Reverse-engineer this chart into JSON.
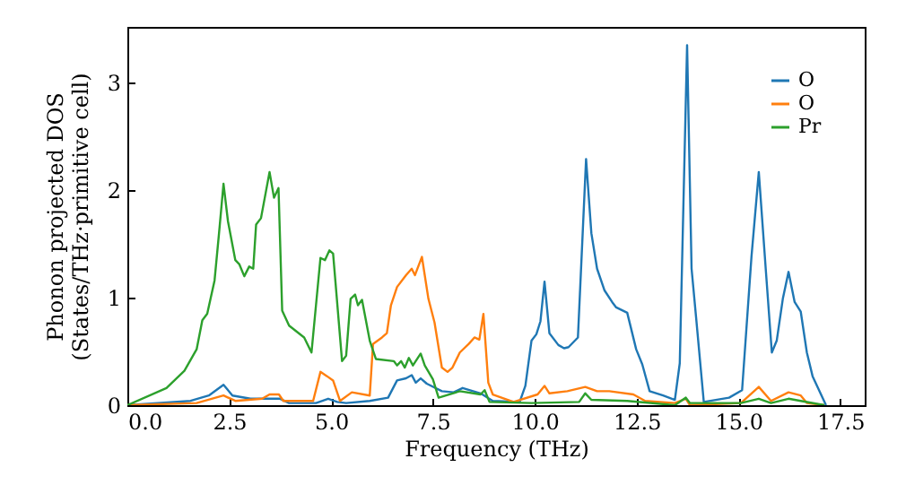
{
  "chart_data": {
    "type": "line",
    "xlabel": "Frequency (THz)",
    "ylabel": "Phonon projected DOS\n(States/THz·primitive cell)",
    "xlim": [
      0,
      18.1
    ],
    "ylim": [
      0,
      3.52
    ],
    "xticks": [
      {
        "value": 0,
        "label": "0.0"
      },
      {
        "value": 2.5,
        "label": "2.5"
      },
      {
        "value": 5,
        "label": "5.0"
      },
      {
        "value": 7.5,
        "label": "7.5"
      },
      {
        "value": 10,
        "label": "10.0"
      },
      {
        "value": 12.5,
        "label": "12.5"
      },
      {
        "value": 15,
        "label": "15.0"
      },
      {
        "value": 17.5,
        "label": "17.5"
      }
    ],
    "yticks": [
      0,
      1,
      2,
      3
    ],
    "grid": false,
    "legend": "top right",
    "marker": "none",
    "line_style": "solid",
    "series": [
      {
        "name": "O",
        "color": "#1f77b4",
        "x": [
          0,
          1.55,
          2.0,
          2.36,
          2.58,
          3.02,
          3.75,
          3.97,
          4.63,
          4.93,
          5.15,
          5.37,
          5.95,
          6.4,
          6.62,
          6.84,
          6.98,
          7.08,
          7.2,
          7.35,
          7.72,
          8.01,
          8.23,
          8.67,
          8.97,
          9.63,
          9.77,
          9.92,
          10.04,
          10.14,
          10.24,
          10.36,
          10.58,
          10.72,
          10.83,
          11.06,
          11.26,
          11.39,
          11.53,
          11.71,
          11.9,
          12.0,
          12.27,
          12.49,
          12.64,
          12.82,
          13.15,
          13.44,
          13.56,
          13.74,
          13.85,
          13.96,
          14.15,
          14.77,
          15.09,
          15.32,
          15.5,
          15.67,
          15.82,
          15.94,
          16.09,
          16.23,
          16.38,
          16.53,
          16.68,
          16.82,
          17.15
        ],
        "values": [
          0,
          0.04,
          0.09,
          0.19,
          0.09,
          0.06,
          0.06,
          0.02,
          0.02,
          0.06,
          0.03,
          0.02,
          0.04,
          0.07,
          0.23,
          0.25,
          0.28,
          0.21,
          0.25,
          0.2,
          0.13,
          0.12,
          0.16,
          0.11,
          0.04,
          0.03,
          0.18,
          0.6,
          0.66,
          0.78,
          1.15,
          0.67,
          0.56,
          0.53,
          0.54,
          0.63,
          2.29,
          1.6,
          1.27,
          1.07,
          0.96,
          0.91,
          0.86,
          0.52,
          0.38,
          0.13,
          0.09,
          0.05,
          0.39,
          3.35,
          1.27,
          0.82,
          0.03,
          0.07,
          0.14,
          1.38,
          2.17,
          1.27,
          0.49,
          0.6,
          0.99,
          1.24,
          0.96,
          0.87,
          0.49,
          0.27,
          0
        ]
      },
      {
        "name": "O",
        "color": "#ff7f0e",
        "x": [
          0,
          1.7,
          2.36,
          2.65,
          3.31,
          3.49,
          3.72,
          3.83,
          4.56,
          4.74,
          4.9,
          5.05,
          5.22,
          5.51,
          5.95,
          6.03,
          6.25,
          6.37,
          6.47,
          6.62,
          6.84,
          6.98,
          7.06,
          7.23,
          7.39,
          7.54,
          7.72,
          7.86,
          7.98,
          8.16,
          8.38,
          8.52,
          8.64,
          8.74,
          8.86,
          8.97,
          9.48,
          10.07,
          10.24,
          10.36,
          10.8,
          11.24,
          11.53,
          11.83,
          12.42,
          12.71,
          13.44,
          13.71,
          13.81,
          15.06,
          15.5,
          15.8,
          16.23,
          16.53,
          16.68,
          17.11
        ],
        "values": [
          0,
          0.02,
          0.09,
          0.04,
          0.06,
          0.1,
          0.1,
          0.04,
          0.04,
          0.31,
          0.27,
          0.23,
          0.04,
          0.12,
          0.09,
          0.57,
          0.63,
          0.67,
          0.93,
          1.1,
          1.21,
          1.27,
          1.21,
          1.38,
          0.99,
          0.77,
          0.35,
          0.31,
          0.35,
          0.49,
          0.57,
          0.63,
          0.61,
          0.85,
          0.21,
          0.1,
          0.03,
          0.1,
          0.18,
          0.11,
          0.13,
          0.17,
          0.13,
          0.13,
          0.1,
          0.04,
          0.02,
          0.06,
          0,
          0.02,
          0.17,
          0.04,
          0.12,
          0.09,
          0.02,
          0
        ]
      },
      {
        "name": "Pr",
        "color": "#2ca02c",
        "x": [
          0,
          0.96,
          1.4,
          1.7,
          1.84,
          1.96,
          2.14,
          2.25,
          2.36,
          2.47,
          2.65,
          2.75,
          2.87,
          2.99,
          3.09,
          3.16,
          3.28,
          3.49,
          3.6,
          3.71,
          3.8,
          3.97,
          4.34,
          4.52,
          4.74,
          4.85,
          4.96,
          5.05,
          5.27,
          5.37,
          5.48,
          5.59,
          5.66,
          5.76,
          5.95,
          6.1,
          6.54,
          6.62,
          6.72,
          6.81,
          6.91,
          7.01,
          7.2,
          7.3,
          7.5,
          7.64,
          8.16,
          8.67,
          8.77,
          8.89,
          9.92,
          11.09,
          11.24,
          11.39,
          12.27,
          13.44,
          13.71,
          13.81,
          15.06,
          15.5,
          15.8,
          16.23,
          16.53,
          17.11
        ],
        "values": [
          0,
          0.16,
          0.32,
          0.52,
          0.79,
          0.85,
          1.16,
          1.6,
          2.06,
          1.71,
          1.35,
          1.31,
          1.2,
          1.29,
          1.27,
          1.68,
          1.74,
          2.17,
          1.93,
          2.02,
          0.88,
          0.74,
          0.63,
          0.49,
          1.37,
          1.35,
          1.44,
          1.41,
          0.41,
          0.46,
          0.99,
          1.03,
          0.93,
          0.98,
          0.6,
          0.43,
          0.41,
          0.37,
          0.41,
          0.35,
          0.44,
          0.37,
          0.48,
          0.37,
          0.24,
          0.07,
          0.13,
          0.1,
          0.14,
          0.03,
          0.02,
          0.03,
          0.11,
          0.05,
          0.04,
          0,
          0.07,
          0.02,
          0.02,
          0.06,
          0.02,
          0.06,
          0.04,
          0
        ]
      }
    ]
  }
}
